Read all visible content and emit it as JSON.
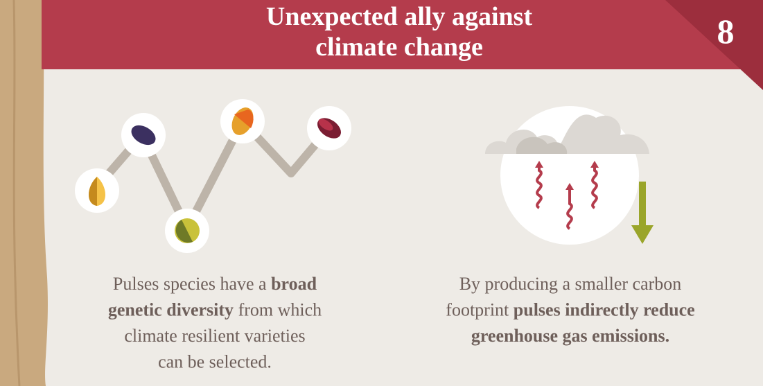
{
  "header": {
    "title_lines": [
      "Unexpected ally against",
      "climate change"
    ],
    "number": "8"
  },
  "panels": [
    {
      "lines": [
        [
          {
            "text": "Pulses species have a ",
            "bold": false
          },
          {
            "text": "broad",
            "bold": true
          }
        ],
        [
          {
            "text": "genetic diversity",
            "bold": true
          },
          {
            "text": " from which",
            "bold": false
          }
        ],
        [
          {
            "text": "climate resilient varieties",
            "bold": false
          }
        ],
        [
          {
            "text": "can be selected.",
            "bold": false
          }
        ]
      ]
    },
    {
      "lines": [
        [
          {
            "text": "By producing a smaller carbon",
            "bold": false
          }
        ],
        [
          {
            "text": "footprint ",
            "bold": false
          },
          {
            "text": "pulses indirectly reduce",
            "bold": true
          }
        ],
        [
          {
            "text": "greenhouse gas emissions.",
            "bold": true
          }
        ]
      ]
    }
  ]
}
